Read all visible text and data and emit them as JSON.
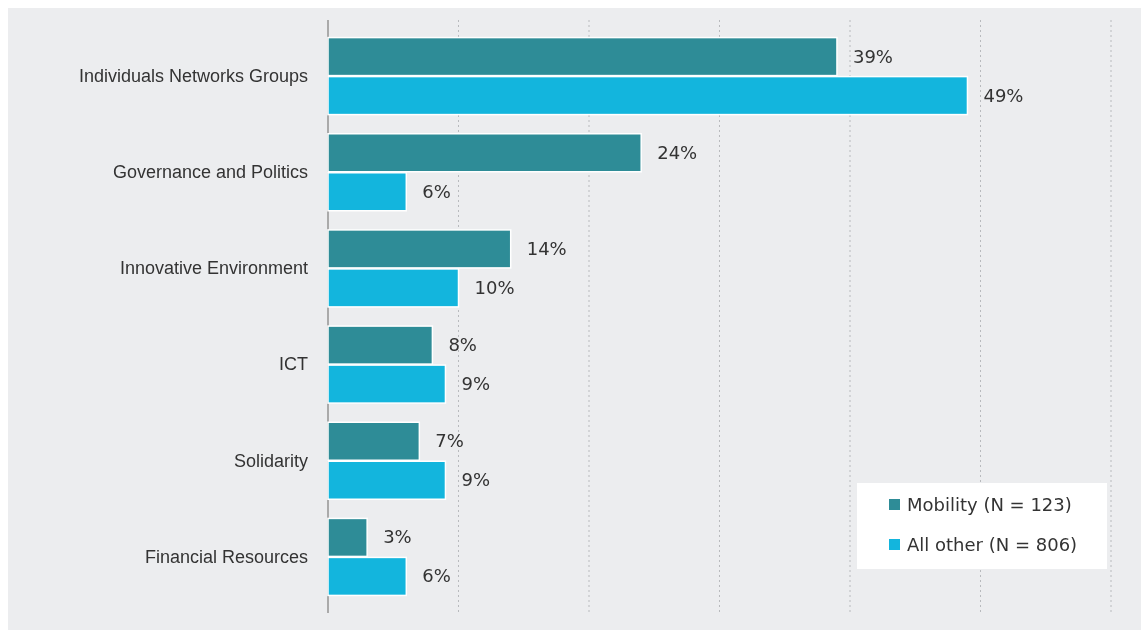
{
  "chart_data": {
    "type": "bar",
    "orientation": "horizontal",
    "categories": [
      "Individuals Networks Groups",
      "Governance and Politics",
      "Innovative Environment",
      "ICT",
      "Solidarity",
      "Financial Resources"
    ],
    "series": [
      {
        "name": "Mobility (N = 123)",
        "color": "#2e8c97",
        "values": [
          39,
          24,
          14,
          8,
          7,
          3
        ],
        "value_labels": [
          "39%",
          "24%",
          "14%",
          "8%",
          "7%",
          "3%"
        ]
      },
      {
        "name": "All other (N = 806)",
        "color": "#13b5dd",
        "values": [
          49,
          6,
          10,
          9,
          9,
          6
        ],
        "value_labels": [
          "49%",
          "6%",
          "10%",
          "9%",
          "9%",
          "6%"
        ]
      }
    ],
    "xlim": [
      0,
      60
    ],
    "xticks": [
      {
        "value": 0,
        "label": null
      },
      {
        "value": 10,
        "label": null
      },
      {
        "value": 20,
        "label": null
      },
      {
        "value": 30,
        "label": null
      },
      {
        "value": 40,
        "label": null
      },
      {
        "value": 50,
        "label": null
      },
      {
        "value": 60,
        "label": null
      }
    ],
    "tick_labels": "y",
    "grid": "x",
    "legend": "bottom right"
  }
}
